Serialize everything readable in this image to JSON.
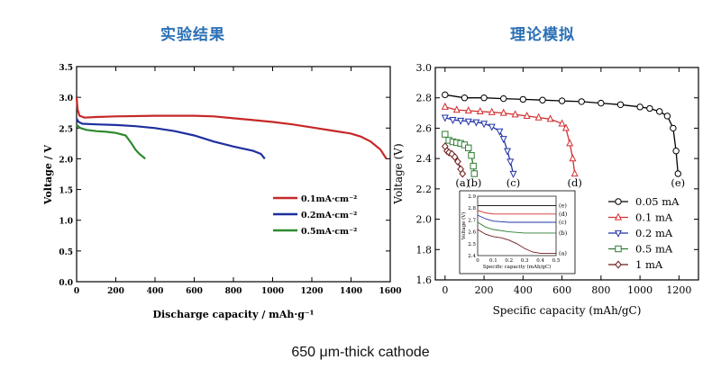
{
  "titles": {
    "left": "实验结果",
    "right": "理论模拟",
    "caption": "650 μm-thick cathode"
  },
  "chart_data": [
    {
      "type": "line",
      "title": "实验结果",
      "xlabel": "Discharge capacity / mAh·g⁻¹",
      "ylabel": "Voltage / V",
      "xlim": [
        0,
        1600
      ],
      "ylim": [
        0.0,
        3.5
      ],
      "xticks": [
        0,
        200,
        400,
        600,
        800,
        1000,
        1200,
        1400,
        1600
      ],
      "xtick_labels": [
        "0",
        "200",
        "400",
        "600",
        "800",
        "1000",
        "1200",
        "1400",
        "1600"
      ],
      "yticks": [
        0.0,
        0.5,
        1.0,
        1.5,
        2.0,
        2.5,
        3.0,
        3.5
      ],
      "ytick_labels": [
        "0.0",
        "0.5",
        "1.0",
        "1.5",
        "2.0",
        "2.5",
        "3.0",
        "3.5"
      ],
      "grid": false,
      "legend_position": "center-right",
      "series": [
        {
          "name": "0.1mA·cm⁻²",
          "color": "#c62828",
          "x": [
            0,
            5,
            15,
            40,
            100,
            200,
            400,
            600,
            700,
            800,
            900,
            1000,
            1100,
            1200,
            1300,
            1400,
            1450,
            1500,
            1550,
            1580
          ],
          "y": [
            3.0,
            2.8,
            2.7,
            2.67,
            2.68,
            2.69,
            2.7,
            2.7,
            2.69,
            2.66,
            2.63,
            2.6,
            2.56,
            2.51,
            2.46,
            2.41,
            2.36,
            2.28,
            2.15,
            2.0
          ]
        },
        {
          "name": "0.2mA·cm⁻²",
          "color": "#1f2f9e",
          "x": [
            0,
            10,
            30,
            100,
            200,
            300,
            400,
            500,
            600,
            700,
            800,
            900,
            940,
            960
          ],
          "y": [
            2.65,
            2.6,
            2.57,
            2.56,
            2.55,
            2.53,
            2.5,
            2.45,
            2.38,
            2.28,
            2.2,
            2.13,
            2.08,
            2.0
          ]
        },
        {
          "name": "0.5mA·cm⁻²",
          "color": "#2e8b2e",
          "x": [
            0,
            20,
            50,
            100,
            150,
            200,
            250,
            280,
            300,
            320,
            340,
            350
          ],
          "y": [
            2.55,
            2.5,
            2.47,
            2.45,
            2.44,
            2.42,
            2.38,
            2.25,
            2.15,
            2.08,
            2.03,
            2.0
          ]
        }
      ]
    },
    {
      "type": "line",
      "title": "理论模拟",
      "xlabel": "Specific capacity (mAh/gC)",
      "ylabel": "Voltage (V)",
      "xlim": [
        -50,
        1300
      ],
      "ylim": [
        1.6,
        3.0
      ],
      "xticks": [
        0,
        200,
        400,
        600,
        800,
        1000,
        1200
      ],
      "xtick_labels": [
        "0",
        "200",
        "400",
        "600",
        "800",
        "1000",
        "1200"
      ],
      "yticks": [
        1.6,
        1.8,
        2.0,
        2.2,
        2.4,
        2.6,
        2.8,
        3.0
      ],
      "ytick_labels": [
        "1.6",
        "1.8",
        "2.0",
        "2.2",
        "2.4",
        "2.6",
        "2.8",
        "3.0"
      ],
      "grid": false,
      "legend_position": "bottom-right",
      "series": [
        {
          "name": "0.05 mA",
          "color": "#000000",
          "marker": "circle",
          "label": "(e)",
          "x": [
            0,
            100,
            200,
            300,
            400,
            500,
            600,
            700,
            800,
            900,
            1000,
            1050,
            1100,
            1140,
            1170,
            1185,
            1195
          ],
          "y": [
            2.82,
            2.8,
            2.8,
            2.795,
            2.79,
            2.785,
            2.78,
            2.775,
            2.765,
            2.755,
            2.74,
            2.73,
            2.71,
            2.68,
            2.6,
            2.45,
            2.3
          ]
        },
        {
          "name": "0.1 mA",
          "color": "#d32f2f",
          "marker": "triangle-up",
          "label": "(d)",
          "x": [
            0,
            60,
            120,
            180,
            240,
            300,
            360,
            420,
            480,
            540,
            600,
            620,
            640,
            655,
            665
          ],
          "y": [
            2.74,
            2.72,
            2.715,
            2.71,
            2.705,
            2.7,
            2.69,
            2.68,
            2.67,
            2.66,
            2.63,
            2.6,
            2.5,
            2.4,
            2.3
          ]
        },
        {
          "name": "0.2 mA",
          "color": "#2233aa",
          "marker": "triangle-down",
          "label": "(c)",
          "x": [
            0,
            40,
            80,
            120,
            160,
            200,
            240,
            280,
            300,
            320,
            335,
            350
          ],
          "y": [
            2.67,
            2.655,
            2.65,
            2.645,
            2.64,
            2.63,
            2.61,
            2.58,
            2.53,
            2.45,
            2.38,
            2.3
          ]
        },
        {
          "name": "0.5 mA",
          "color": "#2e7d32",
          "marker": "square",
          "label": "(b)",
          "x": [
            0,
            20,
            40,
            60,
            80,
            100,
            120,
            135,
            145,
            150
          ],
          "y": [
            2.56,
            2.52,
            2.51,
            2.505,
            2.5,
            2.49,
            2.47,
            2.42,
            2.35,
            2.3
          ]
        },
        {
          "name": "1 mA",
          "color": "#6d1a1a",
          "marker": "diamond",
          "label": "(a)",
          "x": [
            0,
            10,
            20,
            35,
            50,
            65,
            80,
            90
          ],
          "y": [
            2.48,
            2.45,
            2.44,
            2.43,
            2.41,
            2.38,
            2.33,
            2.3
          ]
        }
      ],
      "inset": {
        "xlabel": "Specific capacity (mAh/gC)",
        "ylabel": "Voltage (V)",
        "xlim": [
          0,
          0.5
        ],
        "ylim": [
          2.4,
          2.9
        ],
        "xtick_labels": [
          "0",
          "0.1",
          "0.2",
          "0.3",
          "0.4",
          "0.5"
        ],
        "ytick_labels": [
          "2.4",
          "2.5",
          "2.6",
          "2.7",
          "2.8",
          "2.9"
        ],
        "series": [
          {
            "label": "(e)",
            "color": "#000000",
            "x": [
              0,
              0.1,
              0.2,
              0.3,
              0.4,
              0.5
            ],
            "y": [
              2.82,
              2.82,
              2.82,
              2.82,
              2.82,
              2.82
            ]
          },
          {
            "label": "(d)",
            "color": "#d32f2f",
            "x": [
              0,
              0.05,
              0.1,
              0.2,
              0.3,
              0.4,
              0.5
            ],
            "y": [
              2.78,
              2.76,
              2.75,
              2.75,
              2.75,
              2.75,
              2.75
            ]
          },
          {
            "label": "(c)",
            "color": "#2233aa",
            "x": [
              0,
              0.05,
              0.1,
              0.2,
              0.3,
              0.4,
              0.5
            ],
            "y": [
              2.74,
              2.71,
              2.69,
              2.68,
              2.68,
              2.68,
              2.68
            ]
          },
          {
            "label": "(b)",
            "color": "#2e7d32",
            "x": [
              0,
              0.05,
              0.1,
              0.2,
              0.3,
              0.4,
              0.5
            ],
            "y": [
              2.68,
              2.64,
              2.62,
              2.6,
              2.59,
              2.59,
              2.59
            ]
          },
          {
            "label": "(a)",
            "color": "#6d1a1a",
            "x": [
              0,
              0.05,
              0.1,
              0.15,
              0.2,
              0.25,
              0.3,
              0.35,
              0.4,
              0.45,
              0.5
            ],
            "y": [
              2.62,
              2.58,
              2.56,
              2.55,
              2.53,
              2.5,
              2.46,
              2.43,
              2.42,
              2.42,
              2.42
            ]
          }
        ]
      }
    }
  ]
}
